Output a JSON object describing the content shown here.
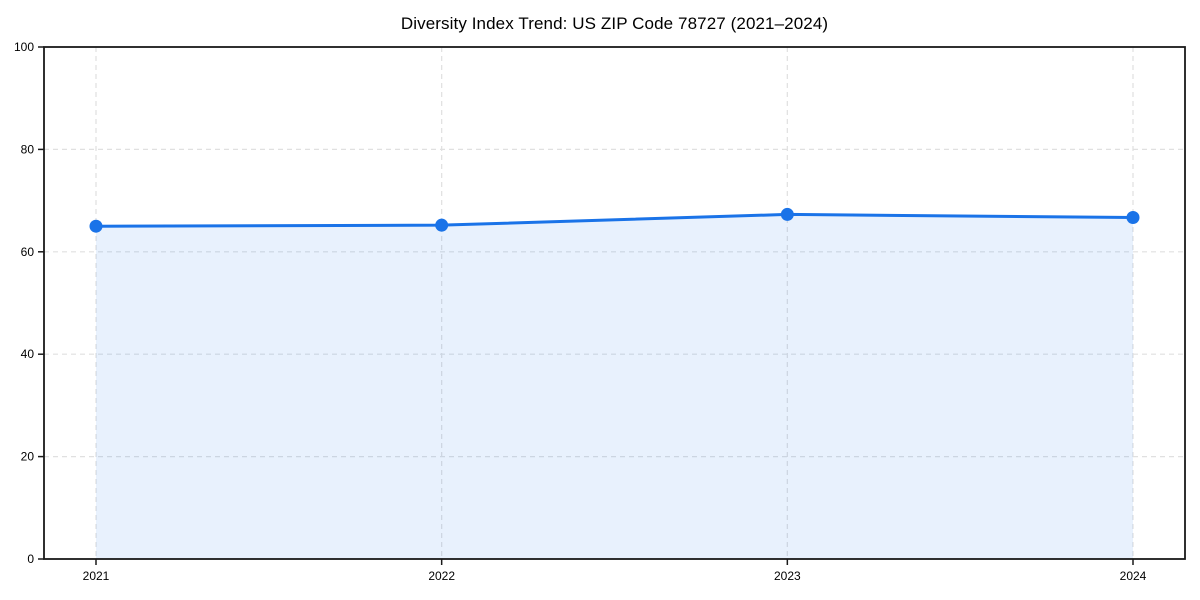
{
  "chart_data": {
    "type": "area",
    "title": "Diversity Index Trend: US ZIP Code 78727 (2021–2024)",
    "categories": [
      "2021",
      "2022",
      "2023",
      "2024"
    ],
    "values": [
      65.0,
      65.2,
      67.3,
      66.7
    ],
    "ylim": [
      0,
      100
    ],
    "yticks": [
      0,
      20,
      40,
      60,
      80,
      100
    ],
    "grid": "dashed, both axes",
    "legend_position": "none",
    "colors": {
      "line": "#1a73e8",
      "marker": "#1a73e8",
      "fill": "rgba(26,115,232,0.10)",
      "grid": "#e0e0e0",
      "spine": "#1a1a1a",
      "text": "#000000"
    }
  }
}
